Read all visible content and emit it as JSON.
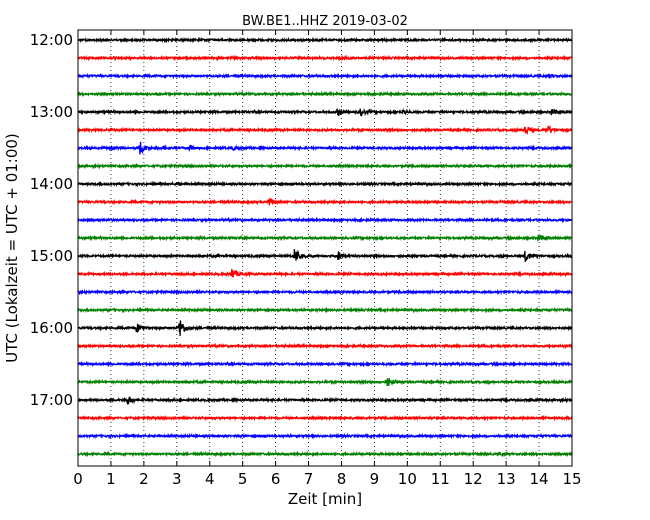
{
  "chart_data": {
    "type": "line",
    "title": "BW.BE1..HHZ 2019-03-02",
    "xlabel": "Zeit  [min]",
    "ylabel": "UTC (Lokalzeit = UTC + 01:00)",
    "x_ticks": [
      0,
      1,
      2,
      3,
      4,
      5,
      6,
      7,
      8,
      9,
      10,
      11,
      12,
      13,
      14,
      15
    ],
    "xlim": [
      0,
      15
    ],
    "y_tick_labels": [
      "12:00",
      "13:00",
      "14:00",
      "15:00",
      "16:00",
      "17:00"
    ],
    "grid": "vertical dotted at every minute",
    "trace_interval_minutes": 15,
    "trace_colors": [
      "#000000",
      "#ff0000",
      "#0000ff",
      "#008000"
    ],
    "traces": [
      {
        "start": "12:00",
        "events": []
      },
      {
        "start": "12:15",
        "events": [
          {
            "t": 8.0,
            "amp": 0.15
          }
        ]
      },
      {
        "start": "12:30",
        "events": [
          {
            "t": 14.3,
            "amp": 0.15
          }
        ]
      },
      {
        "start": "12:45",
        "events": []
      },
      {
        "start": "13:00",
        "events": [
          {
            "t": 7.9,
            "amp": 0.3
          },
          {
            "t": 8.6,
            "amp": 0.35
          },
          {
            "t": 9.9,
            "amp": 0.2
          },
          {
            "t": 14.4,
            "amp": 0.25
          }
        ]
      },
      {
        "start": "13:15",
        "events": [
          {
            "t": 1.0,
            "amp": 0.12
          },
          {
            "t": 13.6,
            "amp": 0.45
          },
          {
            "t": 14.3,
            "amp": 0.35
          }
        ]
      },
      {
        "start": "13:30",
        "events": [
          {
            "t": 1.0,
            "amp": 0.2
          },
          {
            "t": 1.9,
            "amp": 0.6
          },
          {
            "t": 2.6,
            "amp": 0.15
          },
          {
            "t": 3.4,
            "amp": 0.18
          },
          {
            "t": 4.7,
            "amp": 0.15
          }
        ]
      },
      {
        "start": "13:45",
        "events": []
      },
      {
        "start": "14:00",
        "events": [
          {
            "t": 3.0,
            "amp": 0.12
          }
        ]
      },
      {
        "start": "14:15",
        "events": [
          {
            "t": 5.8,
            "amp": 0.35
          }
        ]
      },
      {
        "start": "14:30",
        "events": []
      },
      {
        "start": "14:45",
        "events": [
          {
            "t": 14.0,
            "amp": 0.25
          }
        ]
      },
      {
        "start": "15:00",
        "events": [
          {
            "t": 6.6,
            "amp": 0.7
          },
          {
            "t": 7.9,
            "amp": 0.45
          },
          {
            "t": 13.6,
            "amp": 0.5
          }
        ]
      },
      {
        "start": "15:15",
        "events": [
          {
            "t": 4.7,
            "amp": 0.5
          }
        ]
      },
      {
        "start": "15:30",
        "events": []
      },
      {
        "start": "15:45",
        "events": []
      },
      {
        "start": "16:00",
        "events": [
          {
            "t": 1.8,
            "amp": 0.4
          },
          {
            "t": 3.1,
            "amp": 0.9
          }
        ]
      },
      {
        "start": "16:15",
        "events": []
      },
      {
        "start": "16:30",
        "events": []
      },
      {
        "start": "16:45",
        "events": [
          {
            "t": 9.4,
            "amp": 0.45
          }
        ]
      },
      {
        "start": "17:00",
        "events": [
          {
            "t": 1.5,
            "amp": 0.45
          }
        ]
      },
      {
        "start": "17:15",
        "events": []
      },
      {
        "start": "17:30",
        "events": []
      },
      {
        "start": "17:45",
        "events": [
          {
            "t": 12.8,
            "amp": 0.12
          }
        ]
      }
    ]
  }
}
